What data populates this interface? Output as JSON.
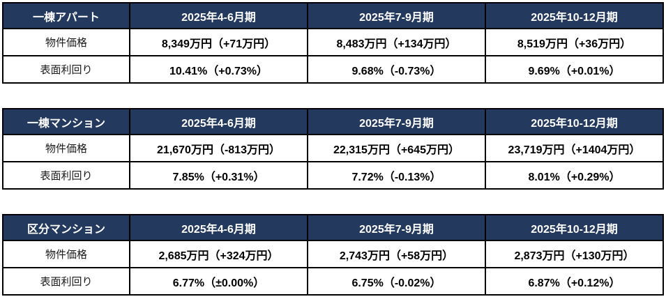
{
  "colors": {
    "header_bg": "#23395E",
    "header_text": "#FFFFFF",
    "border": "#000000",
    "value_text": "#000000"
  },
  "chart_data": [
    {
      "type": "table",
      "title": "一棟アパート",
      "columns": [
        "2025年4-6月期",
        "2025年7-9月期",
        "2025年10-12月期"
      ],
      "rows": [
        {
          "label": "物件価格",
          "values": [
            "8,349万円（+71万円）",
            "8,483万円（+134万円）",
            "8,519万円（+36万円）"
          ]
        },
        {
          "label": "表面利回り",
          "values": [
            "10.41%（+0.73%）",
            "9.68%（-0.73%）",
            "9.69%（+0.01%）"
          ]
        }
      ]
    },
    {
      "type": "table",
      "title": "一棟マンション",
      "columns": [
        "2025年4-6月期",
        "2025年7-9月期",
        "2025年10-12月期"
      ],
      "rows": [
        {
          "label": "物件価格",
          "values": [
            "21,670万円（-813万円）",
            "22,315万円（+645万円）",
            "23,719万円（+1404万円）"
          ]
        },
        {
          "label": "表面利回り",
          "values": [
            "7.85%（+0.31%）",
            "7.72%（-0.13%）",
            "8.01%（+0.29%）"
          ]
        }
      ]
    },
    {
      "type": "table",
      "title": "区分マンション",
      "columns": [
        "2025年4-6月期",
        "2025年7-9月期",
        "2025年10-12月期"
      ],
      "rows": [
        {
          "label": "物件価格",
          "values": [
            "2,685万円（+324万円）",
            "2,743万円（+58万円）",
            "2,873万円（+130万円）"
          ]
        },
        {
          "label": "表面利回り",
          "values": [
            "6.77%（±0.00%）",
            "6.75%（-0.02%）",
            "6.87%（+0.12%）"
          ]
        }
      ]
    }
  ]
}
